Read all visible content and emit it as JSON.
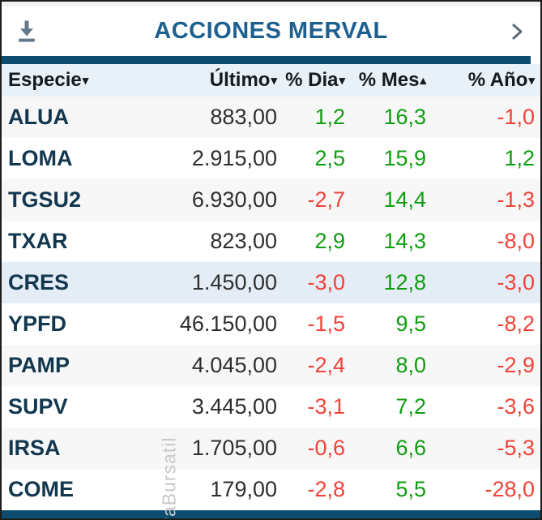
{
  "header": {
    "title": "ACCIONES MERVAL"
  },
  "table": {
    "columns": [
      {
        "key": "especie",
        "label": "Especie",
        "sort_arrow": "▾"
      },
      {
        "key": "ultimo",
        "label": "Último",
        "sort_arrow": "▾"
      },
      {
        "key": "dia",
        "label": "% Dia",
        "sort_arrow": "▾"
      },
      {
        "key": "mes",
        "label": "% Mes",
        "sort_arrow": "▴"
      },
      {
        "key": "ano",
        "label": "% Año",
        "sort_arrow": "▾"
      }
    ],
    "rows": [
      {
        "especie": "ALUA",
        "ultimo": "883,00",
        "dia": "1,2",
        "mes": "16,3",
        "ano": "-1,0"
      },
      {
        "especie": "LOMA",
        "ultimo": "2.915,00",
        "dia": "2,5",
        "mes": "15,9",
        "ano": "1,2"
      },
      {
        "especie": "TGSU2",
        "ultimo": "6.930,00",
        "dia": "-2,7",
        "mes": "14,4",
        "ano": "-1,3"
      },
      {
        "especie": "TXAR",
        "ultimo": "823,00",
        "dia": "2,9",
        "mes": "14,3",
        "ano": "-8,0"
      },
      {
        "especie": "CRES",
        "ultimo": "1.450,00",
        "dia": "-3,0",
        "mes": "12,8",
        "ano": "-3,0"
      },
      {
        "especie": "YPFD",
        "ultimo": "46.150,00",
        "dia": "-1,5",
        "mes": "9,5",
        "ano": "-8,2"
      },
      {
        "especie": "PAMP",
        "ultimo": "4.045,00",
        "dia": "-2,4",
        "mes": "8,0",
        "ano": "-2,9"
      },
      {
        "especie": "SUPV",
        "ultimo": "3.445,00",
        "dia": "-3,1",
        "mes": "7,2",
        "ano": "-3,6"
      },
      {
        "especie": "IRSA",
        "ultimo": "1.705,00",
        "dia": "-0,6",
        "mes": "6,6",
        "ano": "-5,3"
      },
      {
        "especie": "COME",
        "ultimo": "179,00",
        "dia": "-2,8",
        "mes": "5,5",
        "ano": "-28,0"
      }
    ],
    "selected_especie": "CRES"
  },
  "watermark": "vaBursatil",
  "colors": {
    "accent_navy": "#0d4c6e",
    "title_blue": "#1d6090",
    "positive_green": "#0f9d0f",
    "negative_red": "#f04238",
    "ticker_navy": "#12374e",
    "header_row_bg": "#e8f1f8",
    "selected_row_bg": "#e4ecf5",
    "stripe_bg": "#f7f7f7"
  }
}
